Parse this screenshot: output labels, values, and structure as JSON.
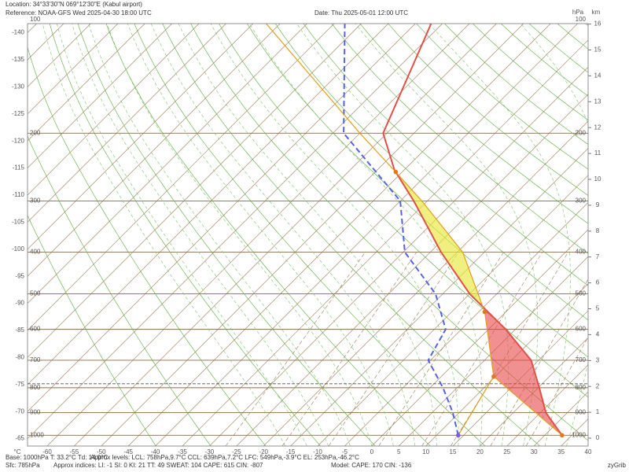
{
  "header": {
    "location": "Location:  34°33'30\"N  069°12'30\"E (Kabul airport)",
    "reference": "Reference: NOAA-GFS Wed 2025-04-30 18:00 UTC",
    "date": "Date: Thu 2025-05-01 12:00 UTC"
  },
  "chart_data": {
    "type": "skew-t",
    "x_label": "°C",
    "xlim": [
      -60,
      40
    ],
    "xticks": [
      -60,
      -55,
      -50,
      -45,
      -40,
      -35,
      -30,
      -25,
      -20,
      -15,
      -10,
      -5,
      0,
      5,
      10,
      15,
      20,
      25,
      30,
      35,
      40
    ],
    "isotherm_labels": [
      -65,
      -70,
      -75,
      -80,
      -85,
      -90,
      -95,
      -100,
      -105,
      -110,
      -115,
      -120,
      -125,
      -130,
      -135,
      -140
    ],
    "pressure_label": "hPa",
    "pressure_ticks": [
      100,
      200,
      300,
      400,
      500,
      600,
      700,
      800,
      900,
      1000
    ],
    "height_label": "km",
    "height_ticks": [
      0,
      1,
      2,
      3,
      4,
      5,
      6,
      7,
      8,
      9,
      10,
      11,
      12,
      13,
      14,
      15,
      16
    ],
    "surface_pressure": 785,
    "series": [
      {
        "color": "#e2504a",
        "pressure": [
          1000,
          900,
          800,
          700,
          600,
          500,
          400,
          300,
          250,
          200,
          100
        ],
        "values": [
          33.2,
          26.0,
          20.2,
          13.6,
          3.2,
          -10.0,
          -23.0,
          -37.5,
          -46.8,
          -55.7,
          -67.5
        ]
      },
      {
        "color": "#5563e0",
        "pressure": [
          1000,
          900,
          800,
          700,
          600,
          500,
          400,
          300,
          200,
          100
        ],
        "values": [
          14.0,
          8.8,
          2.4,
          -5.4,
          -7.9,
          -16.3,
          -29.7,
          -40.0,
          -63.0,
          -83.8
        ]
      },
      {
        "color": "#e0a020",
        "pressure": [
          1000,
          758,
          549,
          400,
          300,
          253,
          200,
          100
        ],
        "values": [
          33.2,
          9.7,
          -3.9,
          -19.0,
          -36.0,
          -46.2,
          -60.0,
          -99.0
        ]
      },
      {
        "color": "#e0a020",
        "pressure": [
          1000,
          758
        ],
        "values": [
          14.0,
          9.7
        ]
      }
    ]
  },
  "footer": {
    "base": "Base: 1000hPa  T: 33.2°C  Td: 14.0°C",
    "levels": "Approx levels:  LCL: 758hPa,9.7°C   CCL: 639hPa,7.2°C   LFC: 549hPa,-3.9°C   EL: 253hPa,-46.2°C",
    "sfc": "Sfc: 785hPa",
    "indices": "Approx indices:  LI: -1   SI: 0   KI: 21   TT: 49   SWEAT: 104   CAPE: 615   CIN: -807",
    "model": "Model: CAPE: 170 CIN: -136",
    "brand": "zyGrib"
  }
}
